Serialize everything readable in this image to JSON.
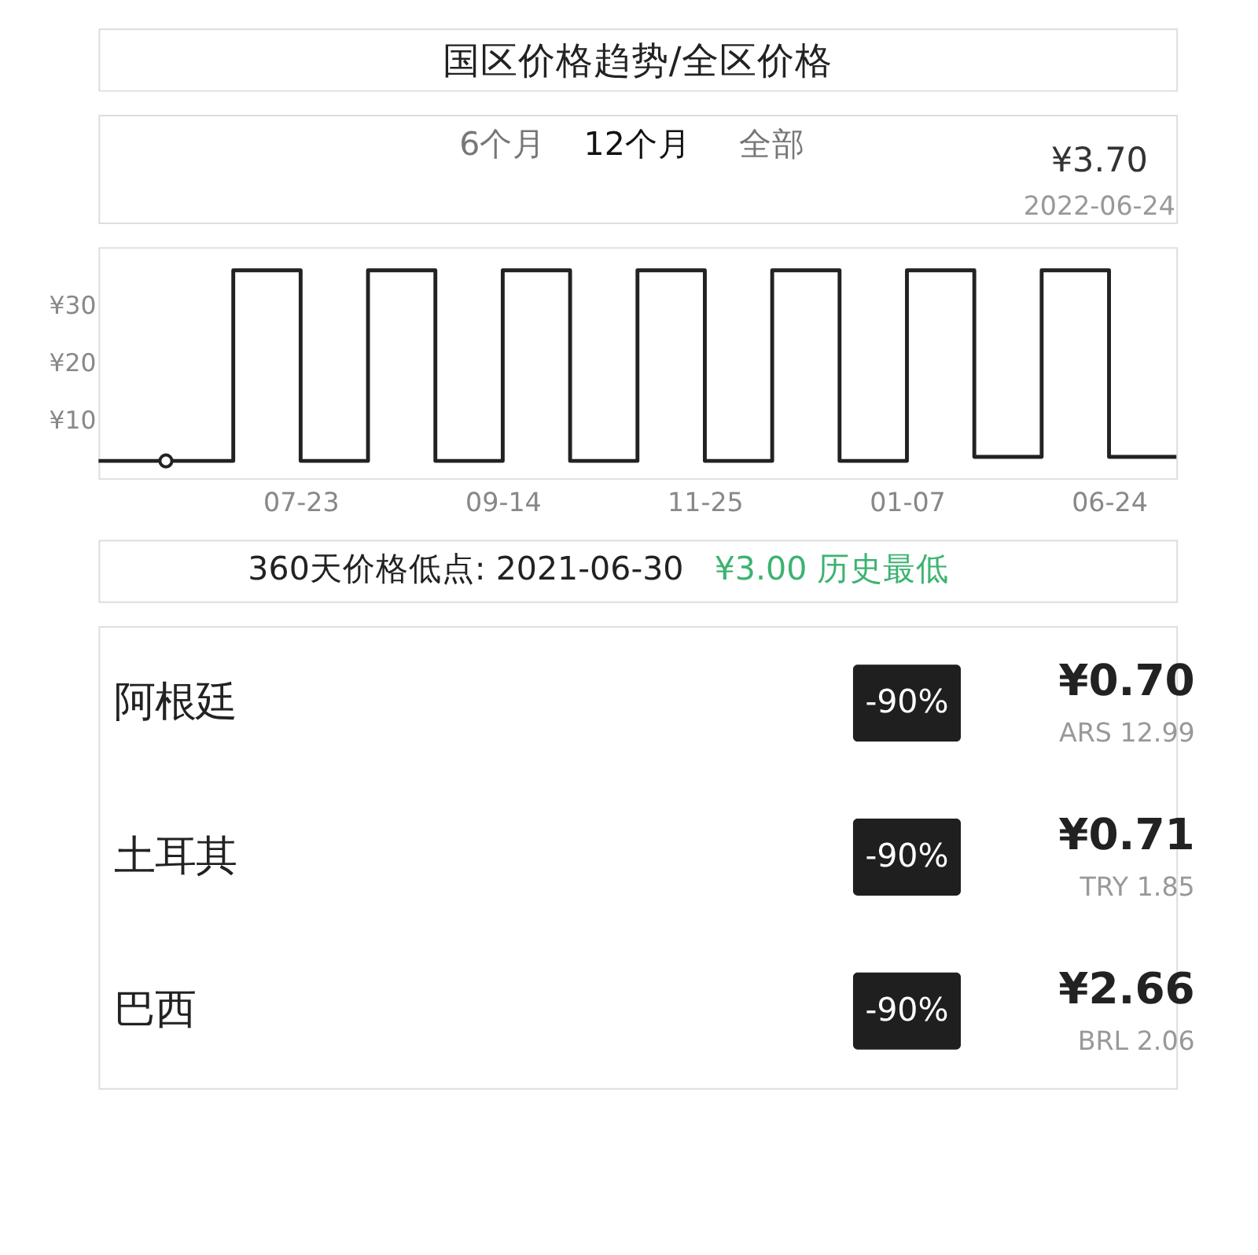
{
  "chart_data": [
    {
      "type": "step",
      "title": "国区价格趋势/全区价格",
      "categories": [
        null,
        null,
        null,
        "07-23",
        null,
        null,
        "09-14",
        null,
        null,
        "11-25",
        null,
        null,
        "01-07",
        null,
        null,
        "06-24",
        null
      ],
      "series": [
        {
          "color": "#222222",
          "marker": "none",
          "values": [
            3,
            3,
            36,
            3,
            36,
            3,
            36,
            3,
            36,
            3,
            36,
            3,
            36,
            3.7,
            36,
            3.7,
            3.7
          ]
        },
        {
          "type": "scatter",
          "color": "#222222",
          "marker": "circle",
          "values": [
            null,
            3,
            null,
            null,
            null,
            null,
            null,
            null,
            null,
            null,
            null,
            null,
            null,
            null,
            null,
            null,
            null
          ]
        }
      ],
      "ylim": [
        0,
        40
      ],
      "yticks": [
        {
          "value": 10,
          "label": "¥10"
        },
        {
          "value": 20,
          "label": "¥20"
        },
        {
          "value": 30,
          "label": "¥30"
        }
      ],
      "grid": false,
      "annotations": [
        "6个月",
        "12个月",
        "全部",
        "360天价格低点: 2021-06-30",
        "¥3.00 历史最低",
        "¥3.70",
        "2022-06-24"
      ]
    },
    {
      "type": "other",
      "annotations": [
        "阿根廷",
        "-90%",
        "¥0.70",
        "ARS 12.99",
        "土耳其",
        "-90%",
        "¥0.71",
        "TRY 1.85",
        "巴西",
        "-90%",
        "¥2.66",
        "BRL 2.06"
      ]
    }
  ]
}
